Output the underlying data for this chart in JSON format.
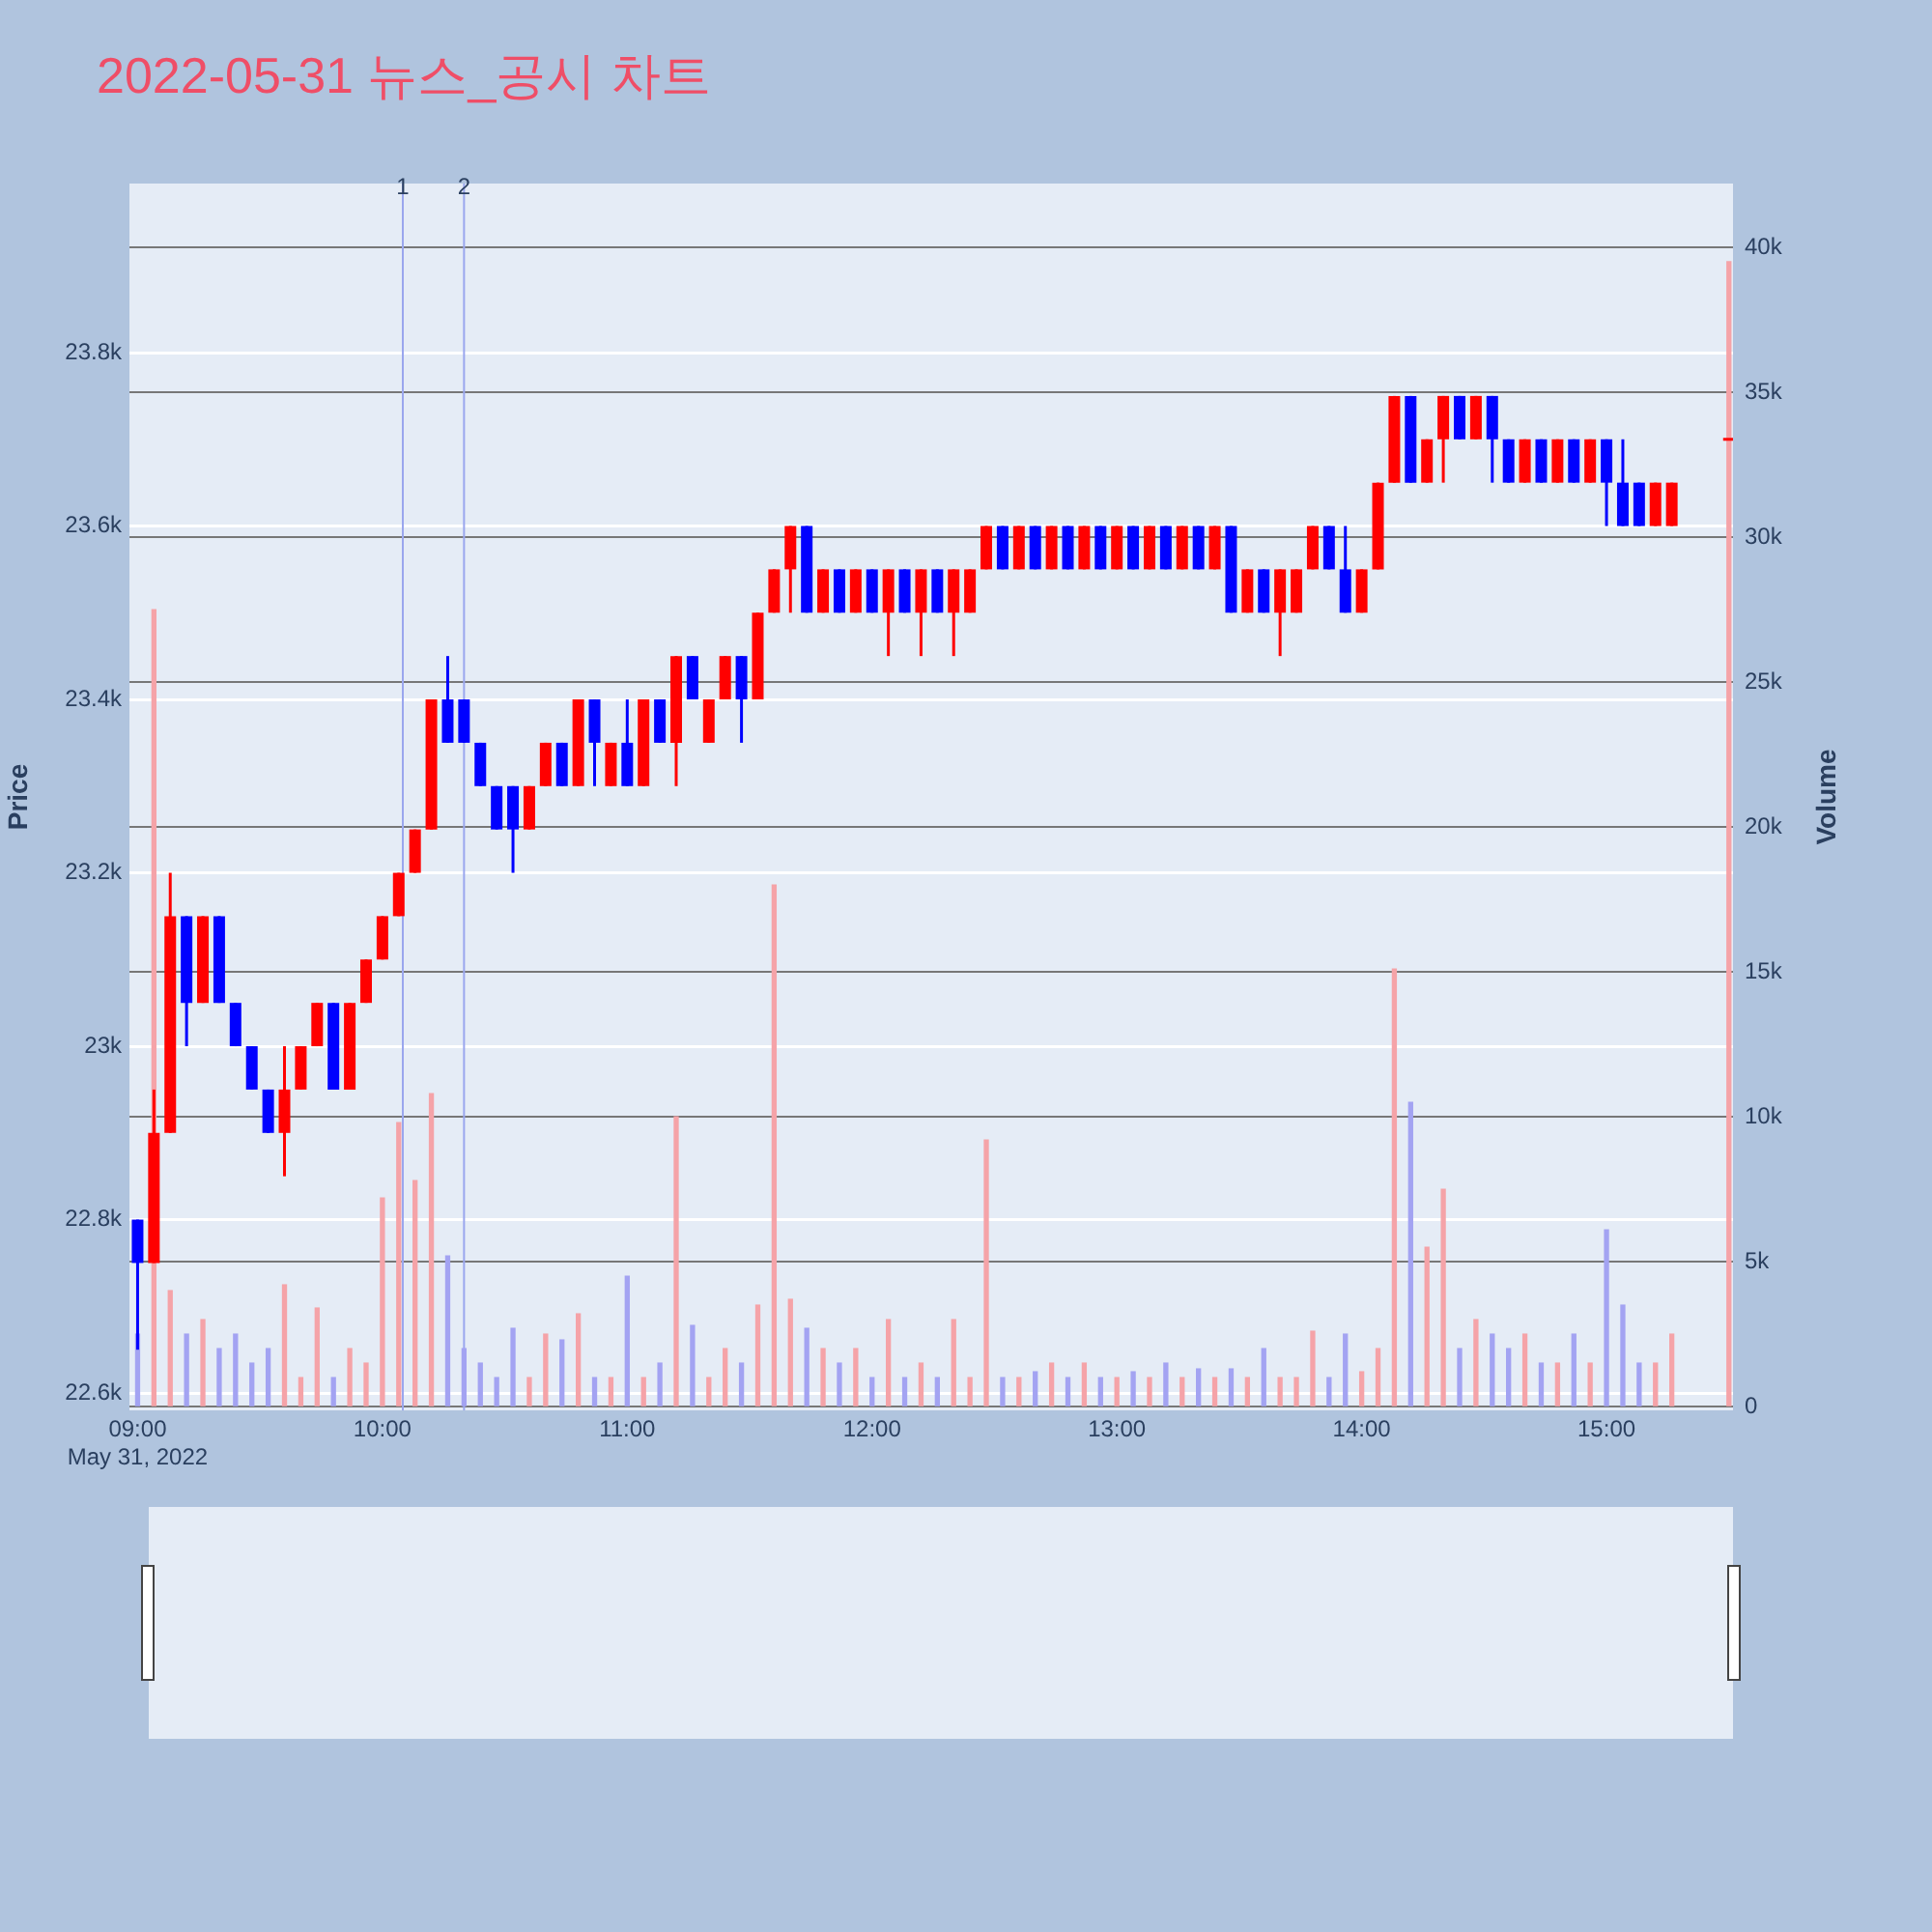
{
  "chart_data": {
    "type": "candlestick",
    "title": "2022-05-31 뉴스_공시 차트",
    "ylabel": "Price",
    "y2label": "Volume",
    "x": [
      "2022-05-31T09:00",
      "2022-05-31T09:04",
      "2022-05-31T09:08",
      "2022-05-31T09:12",
      "2022-05-31T09:16",
      "2022-05-31T09:20",
      "2022-05-31T09:24",
      "2022-05-31T09:28",
      "2022-05-31T09:32",
      "2022-05-31T09:36",
      "2022-05-31T09:40",
      "2022-05-31T09:44",
      "2022-05-31T09:48",
      "2022-05-31T09:52",
      "2022-05-31T09:56",
      "2022-05-31T10:00",
      "2022-05-31T10:04",
      "2022-05-31T10:08",
      "2022-05-31T10:12",
      "2022-05-31T10:16",
      "2022-05-31T10:20",
      "2022-05-31T10:24",
      "2022-05-31T10:28",
      "2022-05-31T10:32",
      "2022-05-31T10:36",
      "2022-05-31T10:40",
      "2022-05-31T10:44",
      "2022-05-31T10:48",
      "2022-05-31T10:52",
      "2022-05-31T10:56",
      "2022-05-31T11:00",
      "2022-05-31T11:04",
      "2022-05-31T11:08",
      "2022-05-31T11:12",
      "2022-05-31T11:16",
      "2022-05-31T11:20",
      "2022-05-31T11:24",
      "2022-05-31T11:28",
      "2022-05-31T11:32",
      "2022-05-31T11:36",
      "2022-05-31T11:40",
      "2022-05-31T11:44",
      "2022-05-31T11:48",
      "2022-05-31T11:52",
      "2022-05-31T11:56",
      "2022-05-31T12:00",
      "2022-05-31T12:04",
      "2022-05-31T12:08",
      "2022-05-31T12:12",
      "2022-05-31T12:16",
      "2022-05-31T12:20",
      "2022-05-31T12:24",
      "2022-05-31T12:28",
      "2022-05-31T12:32",
      "2022-05-31T12:36",
      "2022-05-31T12:40",
      "2022-05-31T12:44",
      "2022-05-31T12:48",
      "2022-05-31T12:52",
      "2022-05-31T12:56",
      "2022-05-31T13:00",
      "2022-05-31T13:04",
      "2022-05-31T13:08",
      "2022-05-31T13:12",
      "2022-05-31T13:16",
      "2022-05-31T13:20",
      "2022-05-31T13:24",
      "2022-05-31T13:28",
      "2022-05-31T13:32",
      "2022-05-31T13:36",
      "2022-05-31T13:40",
      "2022-05-31T13:44",
      "2022-05-31T13:48",
      "2022-05-31T13:52",
      "2022-05-31T13:56",
      "2022-05-31T14:00",
      "2022-05-31T14:04",
      "2022-05-31T14:08",
      "2022-05-31T14:12",
      "2022-05-31T14:16",
      "2022-05-31T14:20",
      "2022-05-31T14:24",
      "2022-05-31T14:28",
      "2022-05-31T14:32",
      "2022-05-31T14:36",
      "2022-05-31T14:40",
      "2022-05-31T14:44",
      "2022-05-31T14:48",
      "2022-05-31T14:52",
      "2022-05-31T14:56",
      "2022-05-31T15:00",
      "2022-05-31T15:04",
      "2022-05-31T15:08",
      "2022-05-31T15:12",
      "2022-05-31T15:16",
      "2022-05-31T15:30"
    ],
    "ohlc": [
      [
        22800,
        22800,
        22650,
        22750
      ],
      [
        22750,
        22950,
        22750,
        22900
      ],
      [
        22900,
        23200,
        22900,
        23150
      ],
      [
        23150,
        23150,
        23000,
        23050
      ],
      [
        23050,
        23150,
        23050,
        23150
      ],
      [
        23150,
        23150,
        23050,
        23050
      ],
      [
        23050,
        23050,
        23000,
        23000
      ],
      [
        23000,
        23000,
        22950,
        22950
      ],
      [
        22950,
        22950,
        22900,
        22900
      ],
      [
        22900,
        23000,
        22850,
        22950
      ],
      [
        22950,
        23000,
        22950,
        23000
      ],
      [
        23000,
        23050,
        23000,
        23050
      ],
      [
        23050,
        23050,
        22950,
        22950
      ],
      [
        22950,
        23050,
        22950,
        23050
      ],
      [
        23050,
        23100,
        23050,
        23100
      ],
      [
        23100,
        23150,
        23100,
        23150
      ],
      [
        23150,
        23200,
        23150,
        23200
      ],
      [
        23200,
        23250,
        23200,
        23250
      ],
      [
        23250,
        23400,
        23250,
        23400
      ],
      [
        23400,
        23450,
        23350,
        23350
      ],
      [
        23400,
        23400,
        23350,
        23350
      ],
      [
        23350,
        23350,
        23300,
        23300
      ],
      [
        23300,
        23300,
        23250,
        23250
      ],
      [
        23300,
        23300,
        23200,
        23250
      ],
      [
        23250,
        23300,
        23250,
        23300
      ],
      [
        23300,
        23350,
        23300,
        23350
      ],
      [
        23350,
        23350,
        23300,
        23300
      ],
      [
        23300,
        23400,
        23300,
        23400
      ],
      [
        23400,
        23400,
        23300,
        23350
      ],
      [
        23300,
        23350,
        23300,
        23350
      ],
      [
        23350,
        23400,
        23300,
        23300
      ],
      [
        23300,
        23400,
        23300,
        23400
      ],
      [
        23400,
        23400,
        23350,
        23350
      ],
      [
        23350,
        23450,
        23300,
        23450
      ],
      [
        23450,
        23450,
        23400,
        23400
      ],
      [
        23350,
        23400,
        23350,
        23400
      ],
      [
        23400,
        23450,
        23400,
        23450
      ],
      [
        23450,
        23450,
        23350,
        23400
      ],
      [
        23400,
        23500,
        23400,
        23500
      ],
      [
        23500,
        23550,
        23500,
        23550
      ],
      [
        23550,
        23600,
        23500,
        23600
      ],
      [
        23600,
        23600,
        23500,
        23500
      ],
      [
        23500,
        23550,
        23500,
        23550
      ],
      [
        23550,
        23550,
        23500,
        23500
      ],
      [
        23500,
        23550,
        23500,
        23550
      ],
      [
        23550,
        23550,
        23500,
        23500
      ],
      [
        23500,
        23550,
        23450,
        23550
      ],
      [
        23550,
        23550,
        23500,
        23500
      ],
      [
        23500,
        23550,
        23450,
        23550
      ],
      [
        23550,
        23550,
        23500,
        23500
      ],
      [
        23500,
        23550,
        23450,
        23550
      ],
      [
        23500,
        23550,
        23500,
        23550
      ],
      [
        23550,
        23600,
        23550,
        23600
      ],
      [
        23600,
        23600,
        23550,
        23550
      ],
      [
        23550,
        23600,
        23550,
        23600
      ],
      [
        23600,
        23600,
        23550,
        23550
      ],
      [
        23550,
        23600,
        23550,
        23600
      ],
      [
        23600,
        23600,
        23550,
        23550
      ],
      [
        23550,
        23600,
        23550,
        23600
      ],
      [
        23600,
        23600,
        23550,
        23550
      ],
      [
        23550,
        23600,
        23550,
        23600
      ],
      [
        23600,
        23600,
        23550,
        23550
      ],
      [
        23550,
        23600,
        23550,
        23600
      ],
      [
        23600,
        23600,
        23550,
        23550
      ],
      [
        23550,
        23600,
        23550,
        23600
      ],
      [
        23600,
        23600,
        23550,
        23550
      ],
      [
        23550,
        23600,
        23550,
        23600
      ],
      [
        23600,
        23600,
        23500,
        23500
      ],
      [
        23500,
        23550,
        23500,
        23550
      ],
      [
        23550,
        23550,
        23500,
        23500
      ],
      [
        23500,
        23550,
        23450,
        23550
      ],
      [
        23500,
        23550,
        23500,
        23550
      ],
      [
        23550,
        23600,
        23550,
        23600
      ],
      [
        23600,
        23600,
        23550,
        23550
      ],
      [
        23550,
        23600,
        23500,
        23500
      ],
      [
        23500,
        23550,
        23500,
        23550
      ],
      [
        23550,
        23650,
        23550,
        23650
      ],
      [
        23650,
        23750,
        23650,
        23750
      ],
      [
        23750,
        23750,
        23650,
        23650
      ],
      [
        23650,
        23700,
        23650,
        23700
      ],
      [
        23700,
        23750,
        23650,
        23750
      ],
      [
        23750,
        23750,
        23700,
        23700
      ],
      [
        23700,
        23750,
        23700,
        23750
      ],
      [
        23750,
        23750,
        23650,
        23700
      ],
      [
        23700,
        23700,
        23650,
        23650
      ],
      [
        23650,
        23700,
        23650,
        23700
      ],
      [
        23700,
        23700,
        23650,
        23650
      ],
      [
        23650,
        23700,
        23650,
        23700
      ],
      [
        23700,
        23700,
        23650,
        23650
      ],
      [
        23650,
        23700,
        23650,
        23700
      ],
      [
        23700,
        23700,
        23600,
        23650
      ],
      [
        23650,
        23700,
        23600,
        23600
      ],
      [
        23650,
        23650,
        23600,
        23600
      ],
      [
        23600,
        23650,
        23600,
        23650
      ],
      [
        23600,
        23650,
        23600,
        23650
      ],
      [
        23700,
        23700,
        23700,
        23700
      ]
    ],
    "colors": [
      "#0000ff",
      "#ff0000",
      "#ff0000",
      "#0000ff",
      "#ff0000",
      "#0000ff",
      "#0000ff",
      "#0000ff",
      "#0000ff",
      "#ff0000",
      "#ff0000",
      "#ff0000",
      "#0000ff",
      "#ff0000",
      "#ff0000",
      "#ff0000",
      "#ff0000",
      "#ff0000",
      "#ff0000",
      "#0000ff",
      "#0000ff",
      "#0000ff",
      "#0000ff",
      "#0000ff",
      "#ff0000",
      "#ff0000",
      "#0000ff",
      "#ff0000",
      "#0000ff",
      "#ff0000",
      "#0000ff",
      "#ff0000",
      "#0000ff",
      "#ff0000",
      "#0000ff",
      "#ff0000",
      "#ff0000",
      "#0000ff",
      "#ff0000",
      "#ff0000",
      "#ff0000",
      "#0000ff",
      "#ff0000",
      "#0000ff",
      "#ff0000",
      "#0000ff",
      "#ff0000",
      "#0000ff",
      "#ff0000",
      "#0000ff",
      "#ff0000",
      "#ff0000",
      "#ff0000",
      "#0000ff",
      "#ff0000",
      "#0000ff",
      "#ff0000",
      "#0000ff",
      "#ff0000",
      "#0000ff",
      "#ff0000",
      "#0000ff",
      "#ff0000",
      "#0000ff",
      "#ff0000",
      "#0000ff",
      "#ff0000",
      "#0000ff",
      "#ff0000",
      "#0000ff",
      "#ff0000",
      "#ff0000",
      "#ff0000",
      "#0000ff",
      "#0000ff",
      "#ff0000",
      "#ff0000",
      "#ff0000",
      "#0000ff",
      "#ff0000",
      "#ff0000",
      "#0000ff",
      "#ff0000",
      "#0000ff",
      "#0000ff",
      "#ff0000",
      "#0000ff",
      "#ff0000",
      "#0000ff",
      "#ff0000",
      "#0000ff",
      "#0000ff",
      "#0000ff",
      "#ff0000",
      "#ff0000",
      "#ff0000"
    ],
    "series": [
      {
        "type": "bar",
        "axis": "y2",
        "values": [
          2500,
          27500,
          4000,
          2500,
          3000,
          2000,
          2500,
          1500,
          2000,
          4200,
          1000,
          3400,
          1000,
          2000,
          1500,
          7200,
          9800,
          7800,
          10800,
          5200,
          2000,
          1500,
          1000,
          2700,
          1000,
          2500,
          2300,
          3200,
          1000,
          1000,
          4500,
          1000,
          1500,
          10000,
          2800,
          1000,
          2000,
          1500,
          3500,
          18000,
          3700,
          2700,
          2000,
          1500,
          2000,
          1000,
          3000,
          1000,
          1500,
          1000,
          3000,
          1000,
          9200,
          1000,
          1000,
          1200,
          1500,
          1000,
          1500,
          1000,
          1000,
          1200,
          1000,
          1500,
          1000,
          1300,
          1000,
          1300,
          1000,
          2000,
          1000,
          1000,
          2600,
          1000,
          2500,
          1200,
          2000,
          15100,
          10500,
          5500,
          7500,
          2000,
          3000,
          2500,
          2000,
          2500,
          1500,
          1500,
          2500,
          1500,
          6100,
          3500,
          1500,
          1500,
          2500,
          39500
        ],
        "colors": [
          "#a3a3f2",
          "#f5a3a8",
          "#f5a3a8",
          "#a3a3f2",
          "#f5a3a8",
          "#a3a3f2",
          "#a3a3f2",
          "#a3a3f2",
          "#a3a3f2",
          "#f5a3a8",
          "#f5a3a8",
          "#f5a3a8",
          "#a3a3f2",
          "#f5a3a8",
          "#f5a3a8",
          "#f5a3a8",
          "#f5a3a8",
          "#f5a3a8",
          "#f5a3a8",
          "#a3a3f2",
          "#a3a3f2",
          "#a3a3f2",
          "#a3a3f2",
          "#a3a3f2",
          "#f5a3a8",
          "#f5a3a8",
          "#a3a3f2",
          "#f5a3a8",
          "#a3a3f2",
          "#f5a3a8",
          "#a3a3f2",
          "#f5a3a8",
          "#a3a3f2",
          "#f5a3a8",
          "#a3a3f2",
          "#f5a3a8",
          "#f5a3a8",
          "#a3a3f2",
          "#f5a3a8",
          "#f5a3a8",
          "#f5a3a8",
          "#a3a3f2",
          "#f5a3a8",
          "#a3a3f2",
          "#f5a3a8",
          "#a3a3f2",
          "#f5a3a8",
          "#a3a3f2",
          "#f5a3a8",
          "#a3a3f2",
          "#f5a3a8",
          "#f5a3a8",
          "#f5a3a8",
          "#a3a3f2",
          "#f5a3a8",
          "#a3a3f2",
          "#f5a3a8",
          "#a3a3f2",
          "#f5a3a8",
          "#a3a3f2",
          "#f5a3a8",
          "#a3a3f2",
          "#f5a3a8",
          "#a3a3f2",
          "#f5a3a8",
          "#a3a3f2",
          "#f5a3a8",
          "#a3a3f2",
          "#f5a3a8",
          "#a3a3f2",
          "#f5a3a8",
          "#f5a3a8",
          "#f5a3a8",
          "#a3a3f2",
          "#a3a3f2",
          "#f5a3a8",
          "#f5a3a8",
          "#f5a3a8",
          "#a3a3f2",
          "#f5a3a8",
          "#f5a3a8",
          "#a3a3f2",
          "#f5a3a8",
          "#a3a3f2",
          "#a3a3f2",
          "#f5a3a8",
          "#a3a3f2",
          "#f5a3a8",
          "#a3a3f2",
          "#f5a3a8",
          "#a3a3f2",
          "#a3a3f2",
          "#a3a3f2",
          "#f5a3a8",
          "#f5a3a8",
          "#f5a3a8"
        ]
      }
    ],
    "xlim": [
      "2022-05-31T08:58",
      "2022-05-31T15:31"
    ],
    "xticks": [
      {
        "value": "2022-05-31T09:00",
        "label": "09:00\nMay 31, 2022"
      },
      {
        "value": "2022-05-31T10:00",
        "label": "10:00"
      },
      {
        "value": "2022-05-31T11:00",
        "label": "11:00"
      },
      {
        "value": "2022-05-31T12:00",
        "label": "12:00"
      },
      {
        "value": "2022-05-31T13:00",
        "label": "13:00"
      },
      {
        "value": "2022-05-31T14:00",
        "label": "14:00"
      },
      {
        "value": "2022-05-31T15:00",
        "label": "15:00"
      }
    ],
    "ylim": [
      22580,
      23995
    ],
    "yticks": [
      {
        "value": 22600,
        "label": "22.6k"
      },
      {
        "value": 22800,
        "label": "22.8k"
      },
      {
        "value": 23000,
        "label": "23k"
      },
      {
        "value": 23200,
        "label": "23.2k"
      },
      {
        "value": 23400,
        "label": "23.4k"
      },
      {
        "value": 23600,
        "label": "23.6k"
      },
      {
        "value": 23800,
        "label": "23.8k"
      }
    ],
    "y2lim": [
      -130,
      42200
    ],
    "y2ticks": [
      0,
      {
        "value": 5000,
        "label": "5k"
      },
      {
        "value": 10000,
        "label": "10k"
      },
      {
        "value": 15000,
        "label": "15k"
      },
      {
        "value": 20000,
        "label": "20k"
      },
      {
        "value": 25000,
        "label": "25k"
      },
      {
        "value": 30000,
        "label": "30k"
      },
      {
        "value": 35000,
        "label": "35k"
      },
      {
        "value": 40000,
        "label": "40k"
      }
    ],
    "ref_lines": [
      {
        "axis": "x",
        "value": "2022-05-31T10:05",
        "label": "1",
        "color": "#9aa6ee"
      },
      {
        "axis": "x",
        "value": "2022-05-31T10:20",
        "label": "2",
        "color": "#9aa6ee"
      }
    ],
    "grid": "y"
  }
}
